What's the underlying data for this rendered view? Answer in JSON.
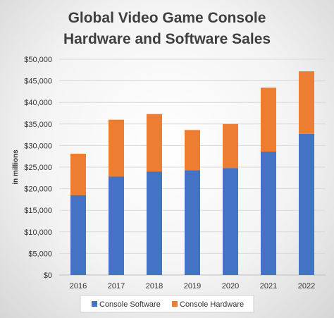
{
  "chart_data": {
    "type": "bar",
    "stacked": true,
    "title_lines": [
      "Global Video Game Console",
      "Hardware and Software Sales"
    ],
    "ylabel": "in millions",
    "xlabel": "",
    "categories": [
      "2016",
      "2017",
      "2018",
      "2019",
      "2020",
      "2021",
      "2022"
    ],
    "series": [
      {
        "name": "Console Software",
        "color": "#4472C4",
        "values": [
          18500,
          22800,
          24000,
          24300,
          24800,
          28600,
          32700
        ]
      },
      {
        "name": "Console Hardware",
        "color": "#ED7D31",
        "values": [
          9600,
          13200,
          13300,
          9300,
          10200,
          14800,
          14500
        ]
      }
    ],
    "ylim": [
      0,
      50000
    ],
    "y_ticks": [
      "$0",
      "$5,000",
      "$10,000",
      "$15,000",
      "$20,000",
      "$25,000",
      "$30,000",
      "$35,000",
      "$40,000",
      "$45,000",
      "$50,000"
    ],
    "grid": true,
    "legend_position": "bottom"
  }
}
